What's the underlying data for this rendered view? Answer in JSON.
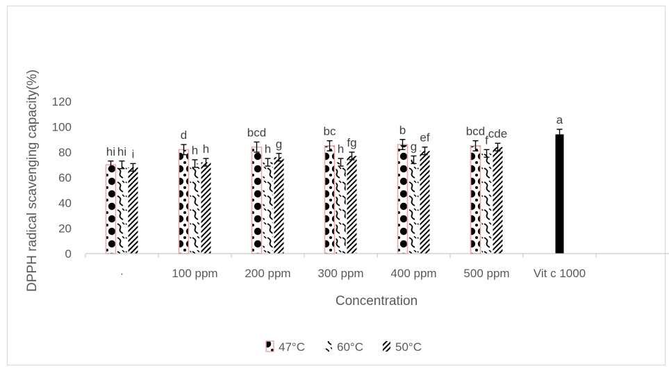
{
  "chart_data": {
    "type": "bar",
    "title": "",
    "xlabel": "Concentration",
    "ylabel": "DPPH radical scavenging capacity(%)",
    "ylim": [
      0,
      120
    ],
    "yticks": [
      0,
      20,
      40,
      60,
      80,
      100,
      120
    ],
    "grid": false,
    "legend_position": "bottom",
    "categories": [
      "·",
      "100 ppm",
      "200 ppm",
      "300 ppm",
      "400 ppm",
      "500 ppm",
      "Vit c 1000"
    ],
    "series": [
      {
        "name": "47°C",
        "pattern": "dots",
        "border": "#e8a9a9",
        "values": [
          70,
          82,
          84,
          85,
          86,
          85,
          null
        ],
        "errors": [
          3,
          4,
          4,
          4,
          4,
          4,
          null
        ],
        "labels": [
          "hi",
          "d",
          "bcd",
          "bc",
          "b",
          "bcd",
          ""
        ]
      },
      {
        "name": "60°C",
        "pattern": "waves",
        "border": null,
        "values": [
          70,
          71,
          72,
          72,
          74,
          79,
          null
        ],
        "errors": [
          3,
          3,
          3,
          3,
          3,
          3,
          null
        ],
        "labels": [
          "hi",
          "h",
          "h",
          "h",
          "g",
          "f",
          ""
        ]
      },
      {
        "name": "50°C",
        "pattern": "diagonal",
        "border": null,
        "values": [
          68,
          72,
          76,
          77,
          81,
          84,
          94
        ],
        "errors": [
          3,
          3,
          3,
          3,
          3,
          3,
          4
        ],
        "labels": [
          "i",
          "h",
          "g",
          "fg",
          "ef",
          "cde",
          "a"
        ]
      }
    ],
    "bar_colors": {
      "fill": "#000000",
      "solid_bar": "#000000",
      "axis": "#bfbfbf",
      "error": "#000000"
    }
  }
}
